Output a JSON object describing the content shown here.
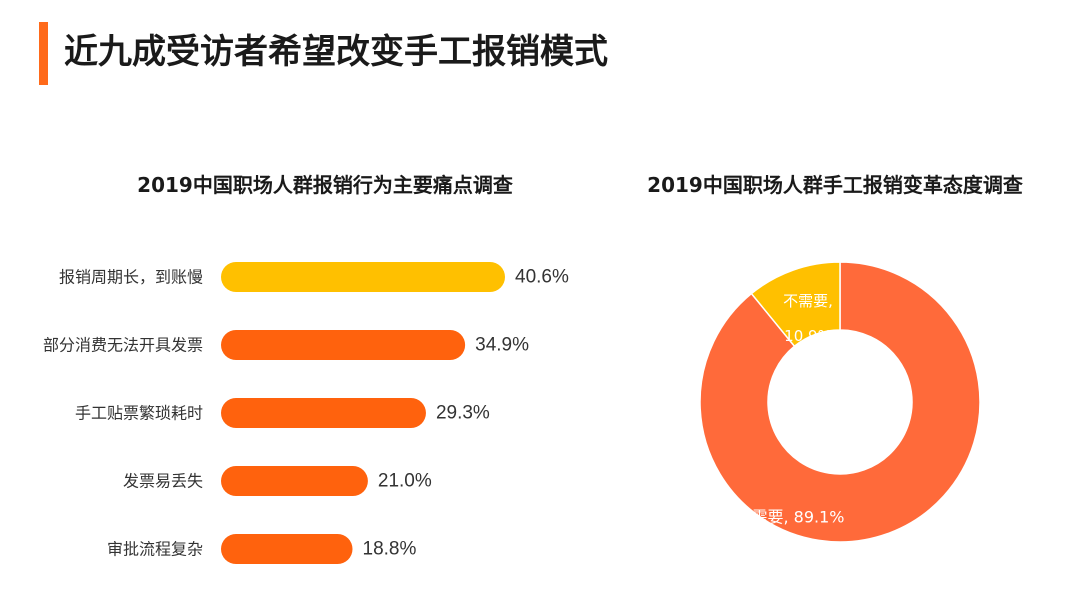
{
  "page": {
    "title": "近九成受访者希望改变手工报销模式",
    "accent_color": "#FF6A1A"
  },
  "chart_data": [
    {
      "type": "bar",
      "orientation": "horizontal",
      "title": "2019中国职场人群报销行为主要痛点调查",
      "categories": [
        "报销周期长，到账慢",
        "部分消费无法开具发票",
        "手工贴票繁琐耗时",
        "发票易丢失",
        "审批流程复杂"
      ],
      "values": [
        40.6,
        34.9,
        29.3,
        21.0,
        18.8
      ],
      "value_labels": [
        "40.6%",
        "34.9%",
        "29.3%",
        "21.0%",
        "18.8%"
      ],
      "unit": "%",
      "colors": [
        "#FFC000",
        "#FF620D",
        "#FF620D",
        "#FF620D",
        "#FF620D"
      ],
      "xlim": [
        0,
        40.6
      ],
      "grid": false,
      "legend": false
    },
    {
      "type": "pie",
      "donut": true,
      "title": "2019中国职场人群手工报销变革态度调查",
      "slices": [
        {
          "label": "需要",
          "value": 89.1,
          "text": "需要, 89.1%",
          "color": "#FF6A3A"
        },
        {
          "label": "不需要",
          "value": 10.9,
          "text_line1": "不需要,",
          "text_line2": "10.9%",
          "color": "#FFC000"
        }
      ],
      "legend": false
    }
  ]
}
